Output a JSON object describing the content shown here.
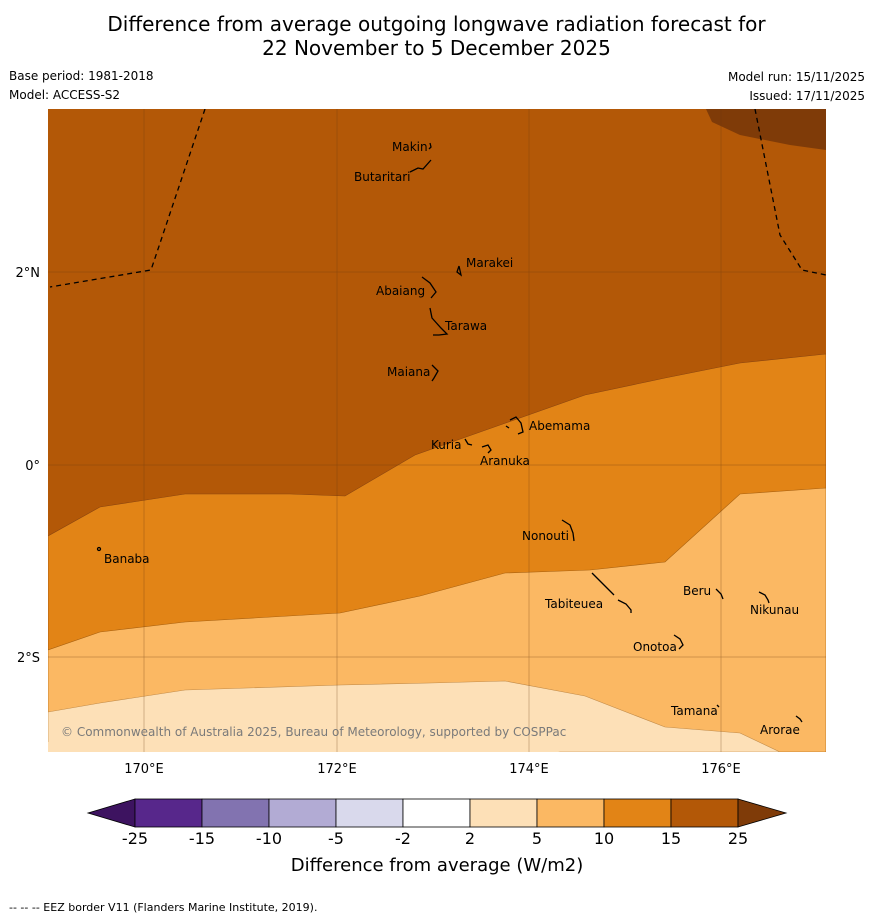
{
  "title": {
    "line1": "Difference from average outgoing longwave radiation forecast for",
    "line2": "22 November to 5 December 2025"
  },
  "meta": {
    "base_period": "Base period: 1981-2018",
    "model": "Model: ACCESS-S2",
    "model_run": "Model run: 15/11/2025",
    "issued": "Issued: 17/11/2025"
  },
  "axes": {
    "lat_labels": [
      "2°N",
      "0°",
      "2°S"
    ],
    "lon_labels": [
      "170°E",
      "172°E",
      "174°E",
      "176°E"
    ]
  },
  "places": [
    {
      "name": "Makin"
    },
    {
      "name": "Butaritari"
    },
    {
      "name": "Marakei"
    },
    {
      "name": "Abaiang"
    },
    {
      "name": "Tarawa"
    },
    {
      "name": "Maiana"
    },
    {
      "name": "Abemama"
    },
    {
      "name": "Kuria"
    },
    {
      "name": "Aranuka"
    },
    {
      "name": "Nonouti"
    },
    {
      "name": "Banaba"
    },
    {
      "name": "Beru"
    },
    {
      "name": "Nikunau"
    },
    {
      "name": "Tabiteuea"
    },
    {
      "name": "Onotoa"
    },
    {
      "name": "Tamana"
    },
    {
      "name": "Arorae"
    }
  ],
  "copyright": "© Commonwealth of Australia 2025, Bureau of Meteorology, supported by COSPPac",
  "legend": {
    "ticks": [
      "-25",
      "-15",
      "-10",
      "-5",
      "-2",
      "2",
      "5",
      "10",
      "15",
      "25"
    ],
    "label": "Difference from average (W/m2)",
    "colors": [
      "#3d1360",
      "#57278b",
      "#8273b0",
      "#b2abd4",
      "#d9d9ec",
      "#ffffff",
      "#fde0b7",
      "#fbb863",
      "#e28416",
      "#b35807",
      "#7f3b08"
    ]
  },
  "footnote": "--  --  -- EEZ border V11 (Flanders Marine Institute, 2019)."
}
